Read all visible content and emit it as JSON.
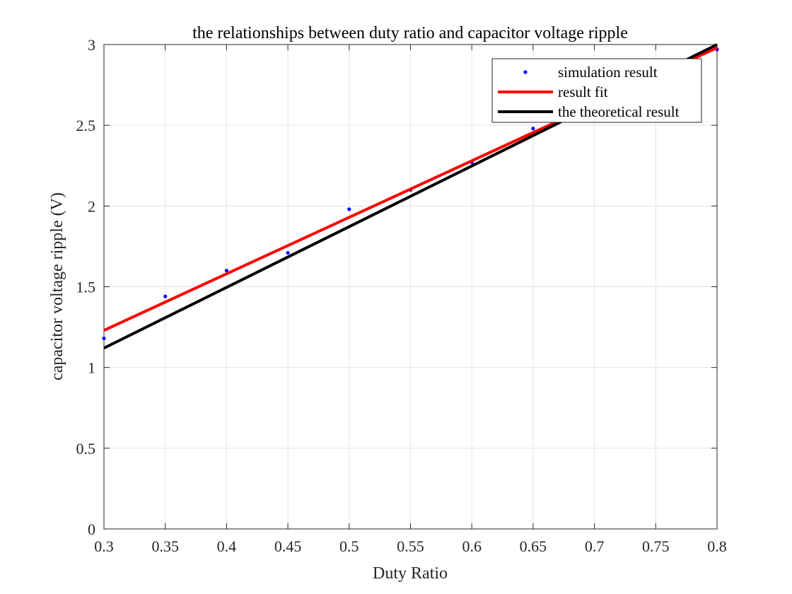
{
  "chart_data": {
    "type": "line",
    "title": "the relationships between duty ratio and capacitor voltage ripple",
    "xlabel": "Duty Ratio",
    "ylabel": "capacitor voltage ripple (V)",
    "xlim": [
      0.3,
      0.8
    ],
    "ylim": [
      0,
      3
    ],
    "xticks": [
      "0.3",
      "0.35",
      "0.4",
      "0.45",
      "0.5",
      "0.55",
      "0.6",
      "0.65",
      "0.7",
      "0.75",
      "0.8"
    ],
    "yticks": [
      "0",
      "0.5",
      "1",
      "1.5",
      "2",
      "2.5",
      "3"
    ],
    "grid": true,
    "legend_position": "top-right",
    "series": [
      {
        "name": "simulation result",
        "kind": "scatter",
        "color": "#0000ff",
        "x": [
          0.3,
          0.35,
          0.4,
          0.45,
          0.5,
          0.55,
          0.6,
          0.65,
          0.8
        ],
        "y": [
          1.18,
          1.44,
          1.6,
          1.71,
          1.98,
          2.1,
          2.27,
          2.48,
          2.97
        ]
      },
      {
        "name": "result fit",
        "kind": "line",
        "color": "#ff0000",
        "x": [
          0.3,
          0.8
        ],
        "y": [
          1.23,
          2.98
        ]
      },
      {
        "name": "the theoretical result",
        "kind": "line",
        "color": "#000000",
        "x": [
          0.3,
          0.8
        ],
        "y": [
          1.12,
          3.0
        ]
      }
    ]
  }
}
